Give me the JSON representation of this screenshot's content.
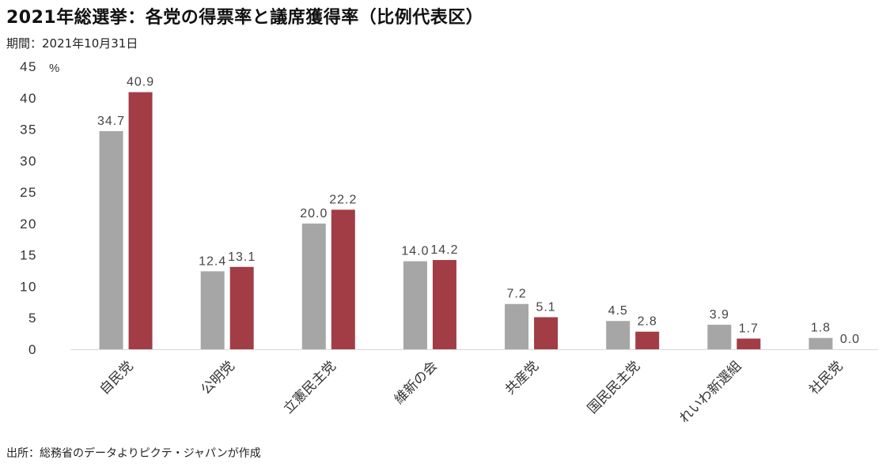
{
  "header": {
    "title": "2021年総選挙：各党の得票率と議席獲得率（比例代表区）",
    "subtitle": "期間：2021年10月31日"
  },
  "footer": {
    "source": "出所：総務省のデータよりピクテ・ジャパンが作成"
  },
  "chart_data": {
    "type": "bar",
    "categories": [
      "自民党",
      "公明党",
      "立憲民主党",
      "維新の会",
      "共産党",
      "国民民主党",
      "れいわ新選組",
      "社民党"
    ],
    "series": [
      {
        "values": [
          34.7,
          12.4,
          20.0,
          14.0,
          7.2,
          4.5,
          3.9,
          1.8
        ],
        "color": "#a6a6a6"
      },
      {
        "values": [
          40.9,
          13.1,
          22.2,
          14.2,
          5.1,
          2.8,
          1.7,
          0.0
        ],
        "color": "#a23d46"
      }
    ],
    "data_labels": [
      [
        "34.7",
        "12.4",
        "20.0",
        "14.0",
        "7.2",
        "4.5",
        "3.9",
        "1.8"
      ],
      [
        "40.9",
        "13.1",
        "22.2",
        "14.2",
        "5.1",
        "2.8",
        "1.7",
        "0.0"
      ]
    ],
    "yunit": "%",
    "ylim": [
      0,
      45
    ],
    "yticks": [
      0,
      5,
      10,
      15,
      20,
      25,
      30,
      35,
      40,
      45
    ],
    "grid": false,
    "legend": "none"
  }
}
